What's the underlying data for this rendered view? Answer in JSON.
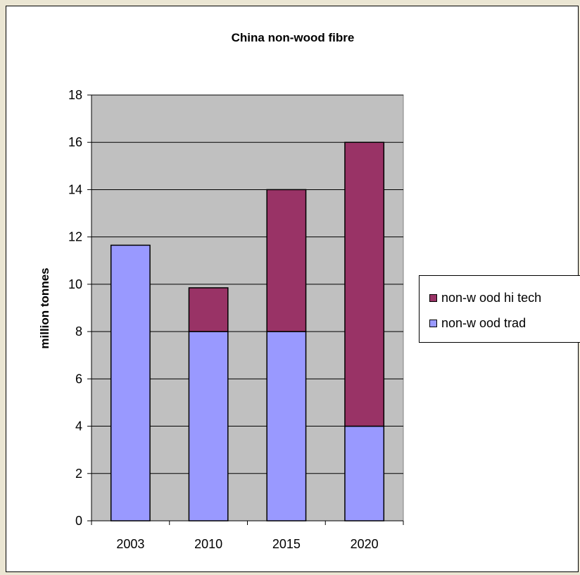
{
  "chart_data": {
    "type": "bar",
    "stacked": true,
    "title": "China non-wood fibre",
    "xlabel": "",
    "ylabel": "million tonnes",
    "categories": [
      "2003",
      "2010",
      "2015",
      "2020"
    ],
    "series": [
      {
        "name": "non-w ood trad",
        "values": [
          11.65,
          8,
          8,
          4
        ],
        "color": "#9999ff"
      },
      {
        "name": "non-w ood hi tech",
        "values": [
          0,
          1.85,
          6,
          12
        ],
        "color": "#993366"
      }
    ],
    "ylim": [
      0,
      18
    ],
    "yticks": [
      0,
      2,
      4,
      6,
      8,
      10,
      12,
      14,
      16,
      18
    ],
    "grid": true,
    "plot_background": "#c0c0c0",
    "legend_position": "right"
  }
}
